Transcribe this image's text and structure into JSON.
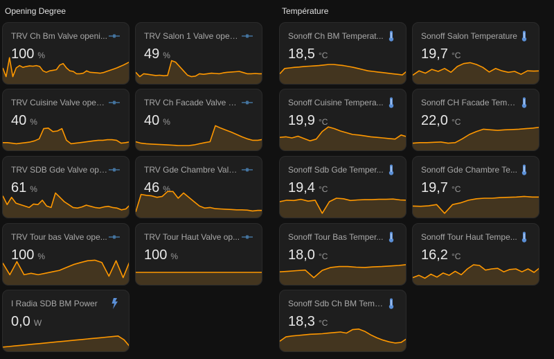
{
  "sections": [
    {
      "title": "Opening Degree"
    },
    {
      "title": "Température"
    }
  ],
  "colors": {
    "line": "#ff9800",
    "fill": "#4a3a20",
    "icon": "#44739e",
    "thermo": "#5b8fd6"
  },
  "cards": [
    {
      "name": "TRV Ch Bm Valve openi...",
      "value": "100",
      "unit": "%",
      "icon": "valve-icon",
      "series": [
        50,
        20,
        85,
        20,
        50,
        58,
        52,
        55,
        57,
        56,
        58,
        55,
        40,
        35,
        40,
        42,
        44,
        60,
        65,
        50,
        40,
        38,
        30,
        30,
        32,
        40,
        35,
        34,
        33,
        32,
        34,
        38,
        42,
        46,
        50,
        55,
        60,
        66,
        72
      ]
    },
    {
      "name": "TRV Salon 1 Valve openi...",
      "value": "49",
      "unit": "%",
      "icon": "valve-icon",
      "series": [
        35,
        20,
        30,
        28,
        26,
        24,
        25,
        23,
        24,
        75,
        70,
        55,
        40,
        25,
        20,
        22,
        30,
        28,
        30,
        32,
        31,
        30,
        33,
        35,
        36,
        37,
        38,
        34,
        30,
        30,
        31,
        30,
        30
      ]
    },
    {
      "name": "TRV Cuisine Valve openi...",
      "value": "40",
      "unit": "%",
      "icon": "valve-icon",
      "series": [
        22,
        22,
        20,
        18,
        20,
        22,
        24,
        28,
        35,
        70,
        72,
        60,
        62,
        70,
        30,
        18,
        20,
        22,
        24,
        26,
        28,
        30,
        30,
        32,
        32,
        30,
        20,
        22,
        25
      ]
    },
    {
      "name": "TRV Ch Facade Valve op...",
      "value": "40",
      "unit": "%",
      "icon": "valve-icon",
      "series": [
        25,
        20,
        18,
        17,
        16,
        15,
        14,
        13,
        12,
        12,
        12,
        14,
        18,
        22,
        25,
        80,
        72,
        65,
        58,
        50,
        42,
        35,
        30,
        30,
        33
      ]
    },
    {
      "name": "TRV SDB Gde Valve ope...",
      "value": "61",
      "unit": "%",
      "icon": "valve-icon",
      "series": [
        70,
        40,
        65,
        45,
        40,
        35,
        30,
        42,
        40,
        55,
        35,
        30,
        80,
        65,
        50,
        40,
        30,
        28,
        32,
        38,
        34,
        30,
        28,
        32,
        34,
        30,
        28,
        22,
        25,
        40
      ]
    },
    {
      "name": "TRV Gde Chambre Valve...",
      "value": "46",
      "unit": "%",
      "icon": "valve-icon",
      "series": [
        15,
        75,
        72,
        70,
        65,
        68,
        85,
        85,
        62,
        80,
        65,
        50,
        35,
        28,
        30,
        26,
        25,
        24,
        23,
        22,
        22,
        21,
        18,
        20,
        20
      ]
    },
    {
      "name": "TRV Tour bas Valve ope...",
      "value": "100",
      "unit": "%",
      "icon": "valve-icon",
      "series": [
        70,
        30,
        75,
        30,
        35,
        30,
        35,
        40,
        45,
        55,
        65,
        72,
        78,
        80,
        72,
        25,
        78,
        20,
        80
      ]
    },
    {
      "name": "TRV Tour Haut Valve op...",
      "value": "100",
      "unit": "%",
      "icon": "valve-icon",
      "series": [
        38,
        38,
        38,
        38,
        38,
        38,
        38,
        38,
        38,
        38
      ]
    },
    {
      "name": "I Radia SDB BM Power",
      "value": "0,0",
      "unit": "W",
      "icon": "lightning-icon",
      "series": [
        10,
        12,
        14,
        16,
        18,
        20,
        22,
        24,
        26,
        28,
        30,
        32,
        34,
        36,
        38,
        40,
        42,
        44,
        46,
        48,
        35,
        10
      ]
    },
    {
      "name": "Sonoff Ch BM Temperat...",
      "value": "18,5",
      "unit": "°C",
      "icon": "thermometer-icon",
      "series": [
        30,
        48,
        50,
        52,
        53,
        55,
        56,
        57,
        58,
        60,
        62,
        62,
        60,
        58,
        55,
        52,
        48,
        44,
        40,
        38,
        36,
        34,
        32,
        30,
        28,
        26,
        40
      ]
    },
    {
      "name": "Sonoff Salon Temperature",
      "value": "19,7",
      "unit": "°C",
      "icon": "thermometer-icon",
      "series": [
        25,
        40,
        32,
        45,
        38,
        48,
        35,
        55,
        65,
        68,
        62,
        52,
        36,
        48,
        40,
        35,
        38,
        28,
        40,
        39,
        40
      ]
    },
    {
      "name": "Sonoff Cuisine Tempera...",
      "value": "19,9",
      "unit": "°C",
      "icon": "thermometer-icon",
      "series": [
        40,
        42,
        38,
        44,
        36,
        28,
        34,
        60,
        76,
        70,
        62,
        56,
        50,
        48,
        45,
        42,
        40,
        38,
        36,
        34,
        48,
        42
      ]
    },
    {
      "name": "Sonoff CH Facade Temp...",
      "value": "22,0",
      "unit": "°C",
      "icon": "thermometer-icon",
      "series": [
        20,
        22,
        22,
        23,
        24,
        20,
        22,
        35,
        50,
        60,
        68,
        66,
        64,
        66,
        67,
        68,
        70,
        72,
        75
      ]
    },
    {
      "name": "Sonoff Sdb Gde Temper...",
      "value": "19,4",
      "unit": "°C",
      "icon": "thermometer-icon",
      "series": [
        50,
        55,
        54,
        58,
        52,
        55,
        10,
        50,
        62,
        60,
        54,
        56,
        57,
        57,
        58,
        58,
        59,
        56,
        55
      ]
    },
    {
      "name": "Sonoff Gde Chambre Te...",
      "value": "19,7",
      "unit": "°C",
      "icon": "thermometer-icon",
      "series": [
        35,
        34,
        36,
        40,
        10,
        40,
        46,
        55,
        60,
        62,
        62,
        64,
        65,
        66,
        68,
        66,
        66
      ]
    },
    {
      "name": "Sonoff Tour Bas Temper...",
      "value": "18,0",
      "unit": "°C",
      "icon": "thermometer-icon",
      "series": [
        40,
        42,
        44,
        46,
        20,
        45,
        55,
        58,
        58,
        56,
        55,
        57,
        58,
        60,
        62,
        65
      ]
    },
    {
      "name": "Sonoff Tour Haut Tempe...",
      "value": "16,2",
      "unit": "°C",
      "icon": "thermometer-icon",
      "series": [
        20,
        28,
        18,
        32,
        22,
        36,
        28,
        42,
        30,
        50,
        64,
        62,
        46,
        50,
        52,
        40,
        48,
        50,
        40,
        50,
        38,
        55
      ]
    },
    {
      "name": "Sonoff Sdb Ch BM Temp...",
      "value": "18,3",
      "unit": "°C",
      "icon": "thermometer-icon",
      "series": [
        30,
        45,
        48,
        50,
        52,
        54,
        55,
        56,
        58,
        60,
        62,
        58,
        70,
        72,
        64,
        52,
        42,
        34,
        28,
        24,
        26,
        40
      ]
    }
  ]
}
